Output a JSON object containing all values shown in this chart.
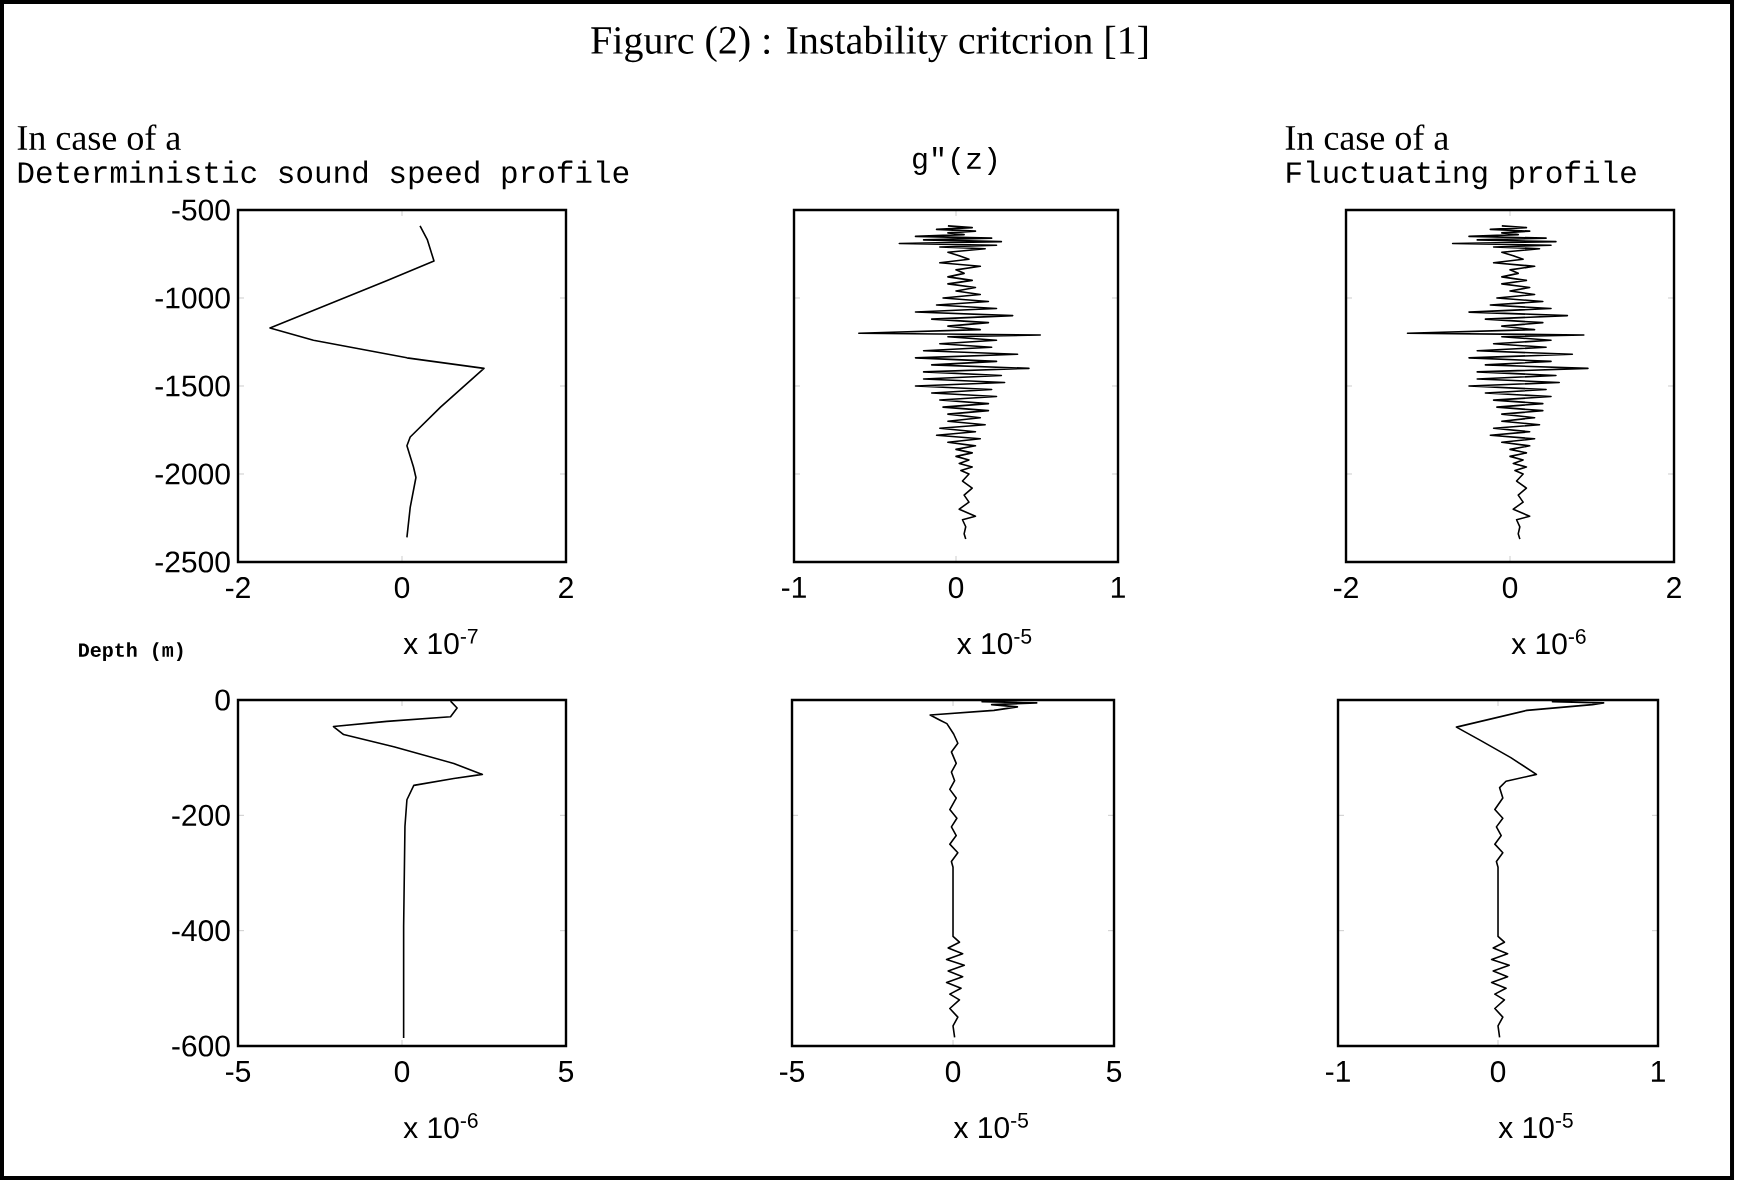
{
  "chart_data": [
    {
      "type": "line",
      "annotations": [
        "In case of a",
        "Deterministic sound speed profile"
      ],
      "xlabel": "x 10$^{-7}$",
      "color": "#000000",
      "xlim": [
        -2,
        2
      ],
      "xticks": [
        -2,
        0,
        2
      ],
      "ylim": [
        -2500,
        -500
      ],
      "yticks": [
        -2500,
        -2000,
        -1500,
        -1000,
        -500
      ],
      "x": [
        0.22,
        0.31,
        0.39,
        -0.18,
        -1.61,
        -1.08,
        0.06,
        1.0,
        0.47,
        0.1,
        0.06,
        0.14,
        0.17,
        0.1,
        0.06
      ],
      "values": [
        -590,
        -670,
        -790,
        -900,
        -1170,
        -1240,
        -1340,
        -1400,
        -1620,
        -1790,
        -1840,
        -1960,
        -2020,
        -2190,
        -2360
      ]
    },
    {
      "type": "line",
      "title": "Figurc (2) : Instability critcrion [1]",
      "subtitle": "g\"(z)",
      "xlabel": "x 10$^{-5}$",
      "color": "#000000",
      "xlim": [
        -1,
        1
      ],
      "xticks": [
        -1,
        0,
        1
      ],
      "ylim": [
        -2500,
        -500
      ],
      "yticks": [
        -2500,
        -2000,
        -1500,
        -1000,
        -500
      ],
      "tick_labels": "x",
      "x": [
        -0.05,
        0.1,
        -0.12,
        0.12,
        -0.05,
        0.05,
        -0.25,
        0.22,
        -0.2,
        0.28,
        -0.35,
        0.25,
        -0.1,
        0.18,
        -0.05,
        0.02,
        0.08,
        -0.1,
        0.15,
        0.0,
        0.05,
        -0.05,
        0.1,
        -0.05,
        0.12,
        0.0,
        0.15,
        -0.08,
        0.2,
        -0.12,
        0.25,
        -0.25,
        0.35,
        -0.15,
        0.2,
        -0.05,
        0.15,
        -0.6,
        0.52,
        -0.05,
        0.25,
        -0.1,
        0.22,
        -0.2,
        0.38,
        -0.25,
        0.25,
        -0.15,
        0.45,
        -0.2,
        0.28,
        -0.2,
        0.3,
        -0.25,
        0.22,
        -0.15,
        0.25,
        -0.1,
        0.2,
        -0.08,
        0.2,
        -0.05,
        0.15,
        -0.05,
        0.18,
        -0.1,
        0.12,
        -0.12,
        0.15,
        -0.05,
        0.12,
        0.0,
        0.1,
        0.0,
        0.08,
        0.02,
        0.1,
        0.03,
        0.08,
        0.04,
        0.1,
        0.05,
        0.08,
        0.02,
        0.12,
        0.04,
        0.06,
        0.05,
        0.06
      ],
      "values": [
        -590,
        -600,
        -610,
        -620,
        -630,
        -640,
        -650,
        -660,
        -670,
        -680,
        -690,
        -700,
        -710,
        -720,
        -740,
        -760,
        -780,
        -800,
        -820,
        -840,
        -860,
        -880,
        -900,
        -920,
        -940,
        -960,
        -980,
        -1000,
        -1020,
        -1040,
        -1060,
        -1080,
        -1100,
        -1120,
        -1140,
        -1160,
        -1180,
        -1200,
        -1210,
        -1220,
        -1240,
        -1260,
        -1280,
        -1300,
        -1320,
        -1340,
        -1360,
        -1380,
        -1400,
        -1420,
        -1440,
        -1460,
        -1480,
        -1500,
        -1520,
        -1540,
        -1560,
        -1580,
        -1600,
        -1620,
        -1640,
        -1660,
        -1680,
        -1700,
        -1720,
        -1740,
        -1760,
        -1780,
        -1800,
        -1820,
        -1840,
        -1860,
        -1880,
        -1900,
        -1920,
        -1940,
        -1960,
        -1980,
        -2000,
        -2040,
        -2080,
        -2120,
        -2160,
        -2200,
        -2240,
        -2260,
        -2300,
        -2340,
        -2370
      ]
    },
    {
      "type": "line",
      "annotations": [
        "In case of a",
        "Fluctuating profile"
      ],
      "xlabel": "x 10$^{-6}$",
      "color": "#000000",
      "xlim": [
        -2,
        2
      ],
      "xticks": [
        -2,
        0,
        2
      ],
      "ylim": [
        -2500,
        -500
      ],
      "yticks": [
        -2500,
        -2000,
        -1500,
        -1000,
        -500
      ],
      "tick_labels": "x",
      "x": [
        -0.1,
        0.2,
        -0.24,
        0.24,
        -0.1,
        0.1,
        -0.5,
        0.44,
        -0.4,
        0.56,
        -0.7,
        0.5,
        -0.2,
        0.36,
        -0.1,
        0.04,
        0.16,
        -0.2,
        0.3,
        0.0,
        0.1,
        -0.1,
        0.2,
        -0.1,
        0.24,
        0.0,
        0.3,
        -0.16,
        0.4,
        -0.24,
        0.5,
        -0.5,
        0.7,
        -0.3,
        0.4,
        -0.1,
        0.3,
        -1.25,
        0.9,
        -0.1,
        0.5,
        -0.2,
        0.44,
        -0.4,
        0.76,
        -0.5,
        0.5,
        -0.3,
        0.95,
        -0.4,
        0.56,
        -0.4,
        0.6,
        -0.5,
        0.44,
        -0.3,
        0.5,
        -0.2,
        0.4,
        -0.16,
        0.4,
        -0.1,
        0.3,
        -0.1,
        0.36,
        -0.2,
        0.24,
        -0.24,
        0.3,
        -0.1,
        0.24,
        0.0,
        0.2,
        0.0,
        0.16,
        0.04,
        0.2,
        0.06,
        0.16,
        0.08,
        0.2,
        0.1,
        0.16,
        0.04,
        0.24,
        0.08,
        0.12,
        0.1,
        0.12
      ],
      "values": [
        -590,
        -600,
        -610,
        -620,
        -630,
        -640,
        -650,
        -660,
        -670,
        -680,
        -690,
        -700,
        -710,
        -720,
        -740,
        -760,
        -780,
        -800,
        -820,
        -840,
        -860,
        -880,
        -900,
        -920,
        -940,
        -960,
        -980,
        -1000,
        -1020,
        -1040,
        -1060,
        -1080,
        -1100,
        -1120,
        -1140,
        -1160,
        -1180,
        -1200,
        -1210,
        -1220,
        -1240,
        -1260,
        -1280,
        -1300,
        -1320,
        -1340,
        -1360,
        -1380,
        -1400,
        -1420,
        -1440,
        -1460,
        -1480,
        -1500,
        -1520,
        -1540,
        -1560,
        -1580,
        -1600,
        -1620,
        -1640,
        -1660,
        -1680,
        -1700,
        -1720,
        -1740,
        -1760,
        -1780,
        -1800,
        -1820,
        -1840,
        -1860,
        -1880,
        -1900,
        -1920,
        -1940,
        -1960,
        -1980,
        -2000,
        -2040,
        -2080,
        -2120,
        -2160,
        -2200,
        -2240,
        -2260,
        -2300,
        -2340,
        -2370
      ]
    },
    {
      "type": "line",
      "ylabel": "Depth (m)",
      "xlabel": "x 10$^{-6}$",
      "color": "#000000",
      "xlim": [
        -5,
        5
      ],
      "xticks": [
        -5,
        0,
        5
      ],
      "ylim": [
        -600,
        0
      ],
      "yticks": [
        -600,
        -400,
        -200,
        0
      ],
      "x": [
        1.48,
        1.68,
        1.48,
        -0.46,
        -2.09,
        -1.78,
        -0.25,
        1.58,
        2.45,
        1.58,
        0.36,
        0.15,
        0.09,
        0.05,
        0.05
      ],
      "values": [
        -2,
        -14,
        -29,
        -37,
        -46,
        -60,
        -81,
        -110,
        -129,
        -136,
        -148,
        -173,
        -219,
        -392,
        -586
      ]
    },
    {
      "type": "line",
      "xlabel": "x 10$^{-5}$",
      "color": "#000000",
      "xlim": [
        -5,
        5
      ],
      "xticks": [
        -5,
        0,
        5
      ],
      "ylim": [
        -600,
        0
      ],
      "yticks": [
        -600,
        -400,
        -200,
        0
      ],
      "tick_labels": "x",
      "x": [
        2.4,
        0.9,
        2.6,
        1.2,
        2.0,
        1.27,
        -0.71,
        -0.4,
        -0.19,
        0.02,
        0.15,
        -0.05,
        0.1,
        -0.05,
        0.05,
        -0.1,
        0.1,
        -0.1,
        0.12,
        -0.05,
        0.1,
        -0.1,
        0.15,
        -0.05,
        0.0,
        0.0,
        0.2,
        -0.15,
        0.3,
        -0.2,
        0.35,
        -0.15,
        0.3,
        -0.2,
        0.25,
        -0.1,
        0.2,
        -0.1,
        0.15,
        0.0,
        0.05
      ],
      "values": [
        0,
        -3,
        -5,
        -8,
        -12,
        -18,
        -26,
        -35,
        -41,
        -59,
        -75,
        -90,
        -110,
        -125,
        -140,
        -155,
        -170,
        -190,
        -205,
        -220,
        -235,
        -250,
        -265,
        -280,
        -290,
        -410,
        -420,
        -430,
        -440,
        -450,
        -460,
        -470,
        -480,
        -490,
        -500,
        -510,
        -520,
        -535,
        -550,
        -565,
        -585
      ]
    },
    {
      "type": "line",
      "xlabel": "x 10$^{-5}$",
      "color": "#000000",
      "xlim": [
        -1,
        1
      ],
      "xticks": [
        -1,
        0,
        1
      ],
      "ylim": [
        -600,
        0
      ],
      "yticks": [
        -600,
        -400,
        -200,
        0
      ],
      "tick_labels": "x",
      "x": [
        0.61,
        0.34,
        0.66,
        0.59,
        0.18,
        -0.26,
        -0.11,
        0.08,
        0.24,
        0.05,
        0.01,
        0.03,
        -0.02,
        0.03,
        -0.01,
        0.02,
        -0.02,
        0.03,
        -0.01,
        0.0,
        0.0,
        0.04,
        -0.03,
        0.06,
        -0.04,
        0.07,
        -0.03,
        0.06,
        -0.04,
        0.05,
        -0.02,
        0.04,
        -0.02,
        0.03,
        0.0,
        0.01
      ],
      "values": [
        0,
        -3,
        -5,
        -8,
        -18,
        -47,
        -70,
        -100,
        -129,
        -141,
        -152,
        -170,
        -190,
        -205,
        -220,
        -235,
        -250,
        -265,
        -280,
        -290,
        -410,
        -420,
        -430,
        -440,
        -450,
        -460,
        -470,
        -480,
        -490,
        -500,
        -510,
        -520,
        -535,
        -550,
        -565,
        -585
      ]
    }
  ]
}
